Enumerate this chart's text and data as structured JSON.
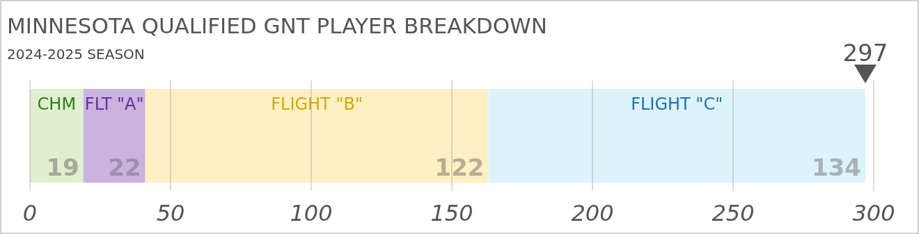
{
  "chart_data": {
    "type": "bar",
    "orientation": "horizontal",
    "stacked": true,
    "title": "MINNESOTA QUALIFIED GNT PLAYER BREAKDOWN",
    "subtitle": "2024-2025 SEASON",
    "categories": [
      null
    ],
    "series": [
      {
        "name": "CHM",
        "color": "#e0f0cf",
        "values": [
          19
        ]
      },
      {
        "name": "FLT \"A\"",
        "color": "#cab3de",
        "values": [
          22
        ]
      },
      {
        "name": "FLIGHT \"B\"",
        "color": "#fdf0c4",
        "values": [
          122
        ]
      },
      {
        "name": "FLIGHT \"C\"",
        "color": "#ddf3fb",
        "values": [
          134
        ]
      }
    ],
    "xlim": [
      0,
      300
    ],
    "xticks": [
      0,
      50,
      100,
      150,
      200,
      250,
      300
    ],
    "grid": "x",
    "data_labels": true,
    "annotations": [
      "297"
    ]
  }
}
